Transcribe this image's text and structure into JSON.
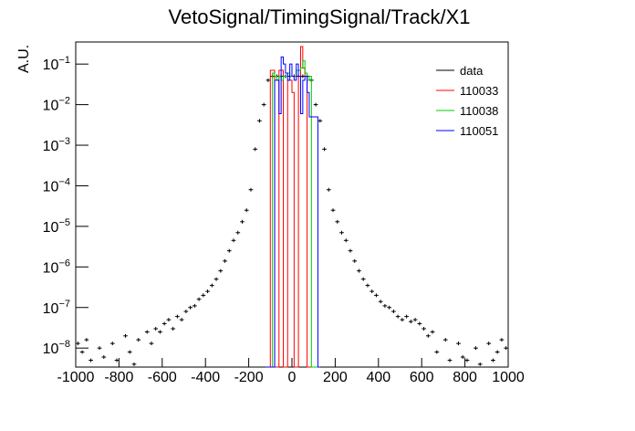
{
  "chart_data": {
    "type": "histogram",
    "title": "VetoSignal/TimingSignal/Track/X1",
    "ylabel": "A.U.",
    "xlim": [
      -1000,
      1000
    ],
    "xticks": [
      -1000,
      -800,
      -600,
      -400,
      -200,
      0,
      200,
      400,
      600,
      800,
      1000
    ],
    "ylim": [
      3.4e-09,
      0.35
    ],
    "log_y": true,
    "yticks": [
      {
        "value": 1e-08,
        "label": "10−8"
      },
      {
        "value": 1e-07,
        "label": "10−7"
      },
      {
        "value": 1e-06,
        "label": "10−6"
      },
      {
        "value": 1e-05,
        "label": "10−5"
      },
      {
        "value": 0.0001,
        "label": "10−4"
      },
      {
        "value": 0.001,
        "label": "10−3"
      },
      {
        "value": 0.01,
        "label": "10−2"
      },
      {
        "value": 0.1,
        "label": "10−1"
      }
    ],
    "legend": "top-right",
    "series": [
      {
        "name": "data",
        "color": "#000000",
        "style": "points",
        "bins": [
          -1000,
          -980,
          -960,
          -940,
          -920,
          -900,
          -880,
          -860,
          -840,
          -820,
          -800,
          -780,
          -760,
          -740,
          -720,
          -700,
          -680,
          -660,
          -640,
          -620,
          -600,
          -580,
          -560,
          -540,
          -520,
          -500,
          -480,
          -460,
          -440,
          -420,
          -400,
          -380,
          -360,
          -340,
          -320,
          -300,
          -280,
          -260,
          -240,
          -220,
          -200,
          -180,
          -160,
          -140,
          -120,
          -100,
          -80,
          -60,
          -40,
          -20,
          0,
          20,
          40,
          60,
          80,
          100,
          120,
          140,
          160,
          180,
          200,
          220,
          240,
          260,
          280,
          300,
          320,
          340,
          360,
          380,
          400,
          420,
          440,
          460,
          480,
          500,
          520,
          540,
          560,
          580,
          600,
          620,
          640,
          660,
          680,
          700,
          720,
          740,
          760,
          780,
          800,
          820,
          840,
          860,
          880,
          900,
          920,
          940,
          960,
          980,
          1000
        ],
        "values": [
          1.3e-08,
          8e-09,
          1.6e-08,
          5e-09,
          0,
          1e-08,
          6e-09,
          0,
          1.3e-08,
          5e-09,
          0,
          2e-08,
          8e-09,
          4e-09,
          1.6e-08,
          0,
          2.5e-08,
          1.3e-08,
          3e-08,
          2.5e-08,
          4e-08,
          5e-08,
          3e-08,
          6e-08,
          5e-08,
          8e-08,
          1e-07,
          1.1e-07,
          1.6e-07,
          2e-07,
          2.5e-07,
          3.5e-07,
          5e-07,
          8e-07,
          1.4e-06,
          2.5e-06,
          4.5e-06,
          7e-06,
          1.3e-05,
          2.5e-05,
          8e-05,
          0.0008,
          0.004,
          0.01,
          0.04,
          0.05,
          0.05,
          0.05,
          0.05,
          0.05,
          0.05,
          0.05,
          0.05,
          0.05,
          0.04,
          0.01,
          0.004,
          0.0008,
          8e-05,
          2.5e-05,
          1.3e-05,
          7e-06,
          4.5e-06,
          2.5e-06,
          1.4e-06,
          8e-07,
          5e-07,
          3.5e-07,
          2.5e-07,
          2e-07,
          1.4e-07,
          1.1e-07,
          1e-07,
          8e-08,
          6e-08,
          5e-08,
          6e-08,
          4.5e-08,
          5e-08,
          4e-08,
          3e-08,
          2e-08,
          2.5e-08,
          8e-09,
          0,
          1.6e-08,
          5e-09,
          0,
          1.3e-08,
          6e-09,
          5e-09,
          0,
          1e-08,
          4e-09,
          0,
          1.3e-08,
          5e-09,
          8e-09,
          1.6e-08,
          1e-08
        ]
      },
      {
        "name": "110033",
        "color": "#ff0000",
        "style": "step",
        "bins": [
          -120,
          -110,
          -100,
          -90,
          -80,
          -70,
          -60,
          -50,
          -40,
          -30,
          -20,
          -10,
          0,
          10,
          20,
          30,
          40,
          50,
          60,
          70,
          80,
          90,
          100,
          110,
          120,
          130
        ],
        "values": [
          0,
          0,
          0.07,
          0.07,
          0,
          0,
          0.07,
          0.07,
          0,
          0,
          0.04,
          0.04,
          0.02,
          0,
          0,
          0.05,
          0.27,
          0.08,
          0.05,
          0,
          0,
          0,
          0,
          0,
          0
        ]
      },
      {
        "name": "110038",
        "color": "#00cc00",
        "style": "step",
        "bins": [
          -120,
          -110,
          -100,
          -90,
          -80,
          -70,
          -60,
          -50,
          -40,
          -30,
          -20,
          -10,
          0,
          10,
          20,
          30,
          40,
          50,
          60,
          70,
          80,
          90,
          100,
          110,
          120,
          130
        ],
        "values": [
          0,
          0,
          0,
          0.06,
          0.05,
          0.04,
          0.05,
          0.04,
          0.05,
          0.05,
          0.06,
          0.05,
          0.05,
          0.05,
          0.07,
          0.07,
          0.08,
          0.12,
          0.06,
          0.04,
          0.05,
          0,
          0,
          0,
          0
        ]
      },
      {
        "name": "110051",
        "color": "#0000ff",
        "style": "step",
        "bins": [
          -120,
          -110,
          -100,
          -90,
          -80,
          -70,
          -60,
          -50,
          -40,
          -30,
          -20,
          -10,
          0,
          10,
          20,
          30,
          40,
          50,
          60,
          70,
          80,
          90,
          100,
          110,
          120,
          130
        ],
        "values": [
          0,
          0,
          0,
          0,
          0.04,
          0.04,
          0.006,
          0.15,
          0.1,
          0.06,
          0.04,
          0.1,
          0.05,
          0.04,
          0.1,
          0.05,
          0.006,
          0.04,
          0.05,
          0.02,
          0.005,
          0.005,
          0.005,
          0.005,
          0
        ]
      }
    ]
  }
}
